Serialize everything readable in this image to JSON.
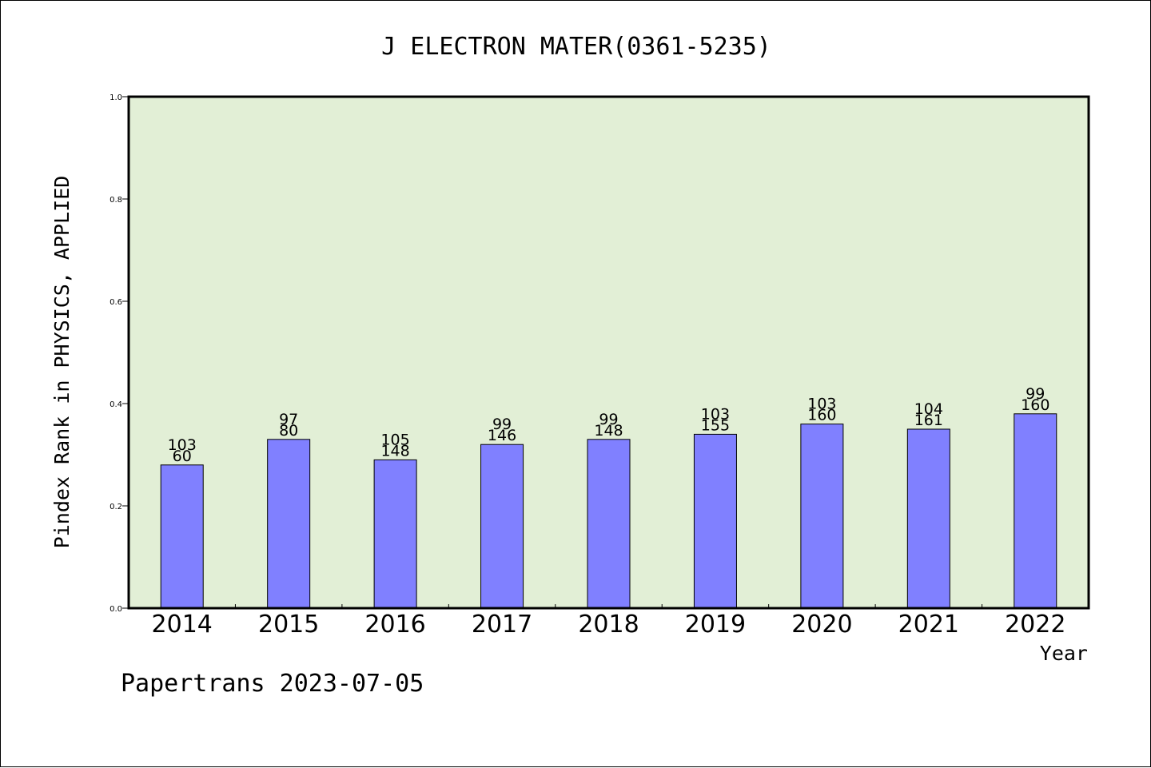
{
  "chart_data": {
    "type": "bar",
    "title": "J ELECTRON MATER(0361-5235)",
    "xlabel": "Year",
    "ylabel": "Pindex Rank in PHYSICS, APPLIED",
    "ylim": [
      0,
      1.0
    ],
    "yticks": [
      "0.0",
      "0.2",
      "0.4",
      "0.6",
      "0.8",
      "1.0"
    ],
    "categories": [
      "2014",
      "2015",
      "2016",
      "2017",
      "2018",
      "2019",
      "2020",
      "2021",
      "2022"
    ],
    "values": [
      0.28,
      0.33,
      0.29,
      0.32,
      0.33,
      0.34,
      0.36,
      0.35,
      0.38
    ],
    "label_top": [
      "103",
      "97",
      "105",
      "99",
      "99",
      "103",
      "103",
      "104",
      "99"
    ],
    "label_bottom": [
      "60",
      "80",
      "148",
      "146",
      "148",
      "155",
      "160",
      "161",
      "160"
    ],
    "grid": false,
    "legend": "none",
    "colors": {
      "plot_background": "#e2efd6",
      "bar_fill": "#8080ff",
      "bar_stroke": "#000000"
    }
  },
  "footer": {
    "text": "Papertrans 2023-07-05"
  }
}
